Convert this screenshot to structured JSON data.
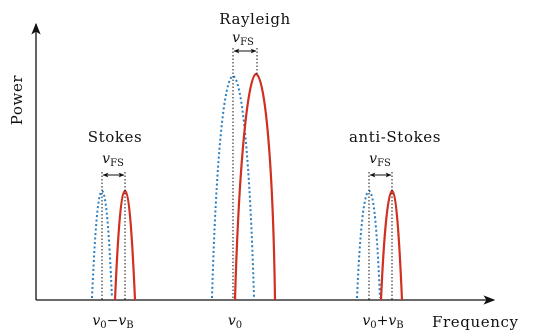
{
  "axes": {
    "y_label": "Power",
    "x_label": "Frequency",
    "x_ticks": [
      {
        "id": "minus",
        "base": "v",
        "sub0": "0",
        "op": "−",
        "base2": "v",
        "sub2": "B"
      },
      {
        "id": "center",
        "base": "v",
        "sub0": "0"
      },
      {
        "id": "plus",
        "base": "v",
        "sub0": "0",
        "op": "+",
        "base2": "v",
        "sub2": "B"
      }
    ]
  },
  "peaks": [
    {
      "name": "Stokes",
      "shift": {
        "base": "v",
        "sub": "FS"
      }
    },
    {
      "name": "Rayleigh",
      "shift": {
        "base": "v",
        "sub": "FS"
      }
    },
    {
      "name": "anti-Stokes",
      "shift": {
        "base": "v",
        "sub": "FS"
      }
    }
  ],
  "colors": {
    "reference_curve": "#2a7fc0",
    "shifted_curve": "#d0301f",
    "axis": "#111111"
  }
}
